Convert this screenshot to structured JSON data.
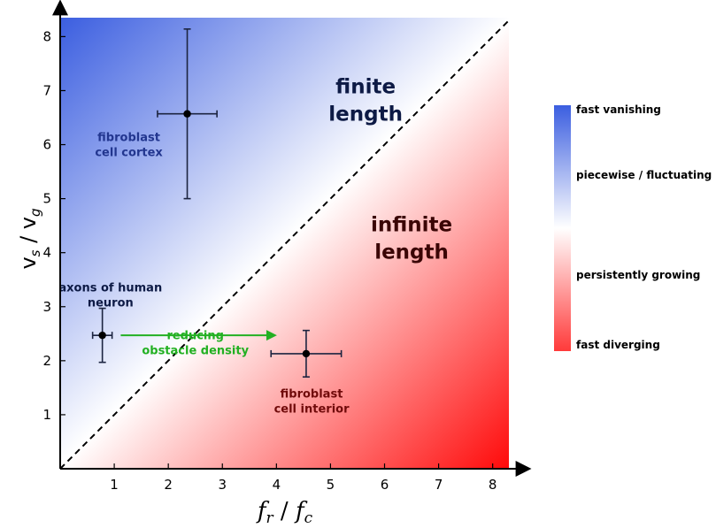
{
  "chart_data": {
    "type": "scatter",
    "title": "",
    "xlabel": {
      "main": "f",
      "sub1": "r",
      "sep": " / ",
      "main2": "f",
      "sub2": "c"
    },
    "ylabel": {
      "main": "v",
      "sub1": "s",
      "sep": " / ",
      "main2": "v",
      "sub2": "g"
    },
    "xlim": [
      0,
      8.3
    ],
    "ylim": [
      0,
      8.35
    ],
    "xticks": [
      1,
      2,
      3,
      4,
      5,
      6,
      7,
      8
    ],
    "yticks": [
      1,
      2,
      3,
      4,
      5,
      6,
      7,
      8
    ],
    "background": "diagonal gradient: blue above y = x, red below y = x",
    "divider": {
      "style": "dashed",
      "from": [
        0,
        0
      ],
      "to": [
        8.3,
        8.3
      ]
    },
    "points": [
      {
        "x": 2.35,
        "y": 6.57,
        "xerr": [
          0.55,
          0.55
        ],
        "yerr": [
          1.57,
          1.57
        ]
      },
      {
        "x": 0.78,
        "y": 2.47,
        "xerr": [
          0.18,
          0.18
        ],
        "yerr": [
          0.5,
          0.5
        ]
      },
      {
        "x": 4.55,
        "y": 2.13,
        "xerr": [
          0.65,
          0.65
        ],
        "yerr": [
          0.43,
          0.43
        ]
      }
    ],
    "region_labels": [
      {
        "lines": [
          "finite",
          "length"
        ],
        "x": 5.65,
        "y": 6.95,
        "color": "#0d1a45"
      },
      {
        "lines": [
          "infinite",
          "length"
        ],
        "x": 6.5,
        "y": 4.4,
        "color": "#3a0505"
      }
    ],
    "annotations": [
      {
        "lines": [
          "fibroblast",
          "cell cortex"
        ],
        "x": 1.27,
        "y": 6.07,
        "color": "#22368f"
      },
      {
        "lines": [
          "axons of human",
          "neuron"
        ],
        "x": 0.93,
        "y": 3.28,
        "color": "#0d1a45"
      },
      {
        "lines": [
          "fibroblast",
          "cell interior"
        ],
        "x": 4.65,
        "y": 1.32,
        "color": "#700a0a"
      },
      {
        "lines": [
          "reducing",
          "obstacle density"
        ],
        "x": 2.5,
        "y": 2.4,
        "color": "#22b022"
      }
    ],
    "arrow": {
      "from": [
        1.12,
        2.47
      ],
      "to": [
        3.97,
        2.47
      ],
      "color": "#22b022"
    },
    "colorbar": {
      "labels": [
        "fast vanishing",
        "piecewise / fluctuating",
        "persistently growing",
        "fast diverging"
      ],
      "colors": [
        "#3b5ee0",
        "#ffffff",
        "#ff3a3a"
      ]
    },
    "legend": "none",
    "grid": false
  }
}
